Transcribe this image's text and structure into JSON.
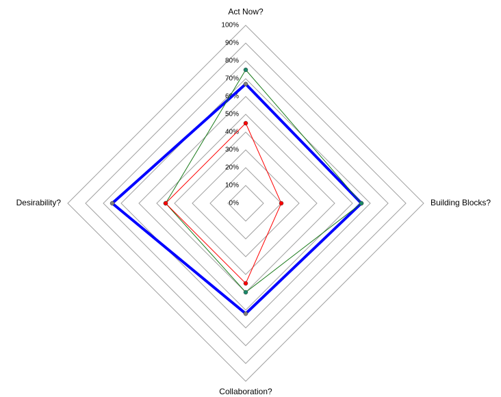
{
  "chart_data": {
    "type": "radar",
    "categories": [
      "Act Now?",
      "Building Blocks?",
      "Collaboration?",
      "Desirability?"
    ],
    "rlim": [
      0,
      100
    ],
    "rticks": [
      {
        "value": 0,
        "label": "0%"
      },
      {
        "value": 10,
        "label": "10%"
      },
      {
        "value": 20,
        "label": "20%"
      },
      {
        "value": 30,
        "label": "30%"
      },
      {
        "value": 40,
        "label": "40%"
      },
      {
        "value": 50,
        "label": "50%"
      },
      {
        "value": 60,
        "label": "60%"
      },
      {
        "value": 70,
        "label": "70%"
      },
      {
        "value": 80,
        "label": "80%"
      },
      {
        "value": 90,
        "label": "90%"
      },
      {
        "value": 100,
        "label": "100%"
      }
    ],
    "grid": true,
    "series": [
      {
        "color": "#0000ff",
        "marker_color": "#808080",
        "values": [
          67,
          65,
          62,
          75
        ]
      },
      {
        "color": "#1a7a1a",
        "marker_color": "#1a8a6a",
        "values": [
          75,
          65,
          50,
          45
        ]
      },
      {
        "color": "#ff0000",
        "marker_color": "#ff0000",
        "values": [
          45,
          20,
          45,
          45
        ]
      }
    ]
  }
}
